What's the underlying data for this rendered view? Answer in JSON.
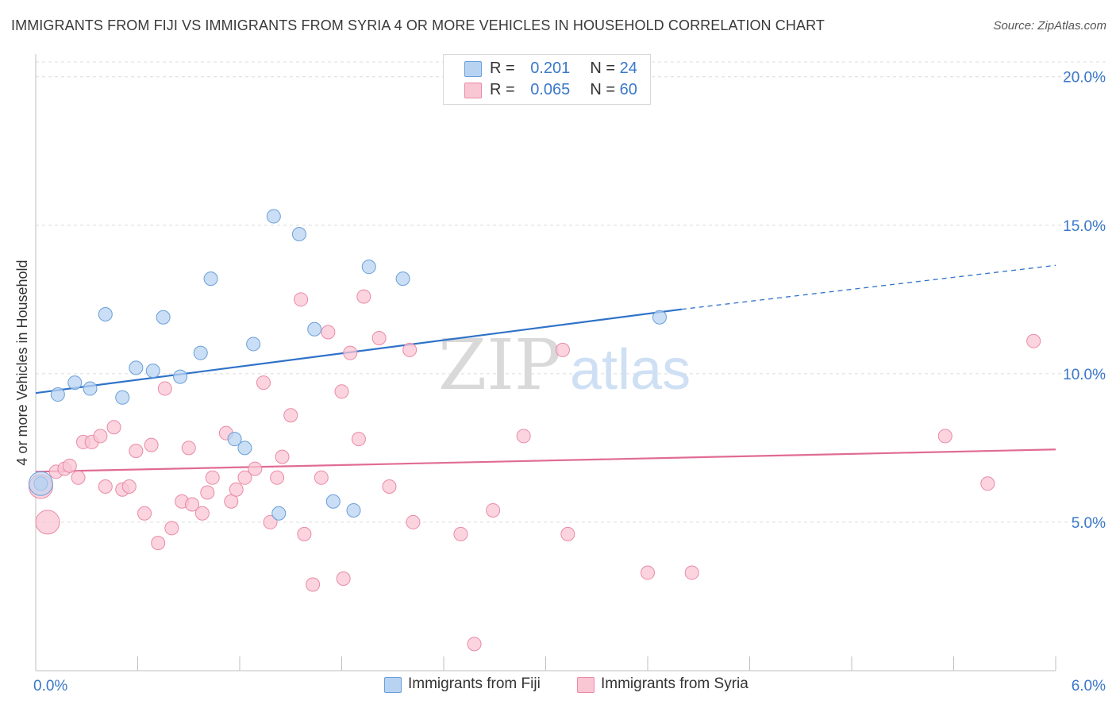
{
  "title": "IMMIGRANTS FROM FIJI VS IMMIGRANTS FROM SYRIA 4 OR MORE VEHICLES IN HOUSEHOLD CORRELATION CHART",
  "source": "Source: ZipAtlas.com",
  "watermark": {
    "zip": "ZIP",
    "atlas": "atlas"
  },
  "legend": {
    "r_label": "R =",
    "n_label": "N =",
    "rows": [
      {
        "r": "0.201",
        "n": "24",
        "color": "#b8d3f2",
        "border": "#6a9fd8"
      },
      {
        "r": "0.065",
        "n": "60",
        "color": "#f9c6d4",
        "border": "#e98aa6"
      }
    ]
  },
  "bottom_legend": [
    {
      "label": "Immigrants from Fiji",
      "color": "#b8d3f2",
      "border": "#6a9fd8"
    },
    {
      "label": "Immigrants from Syria",
      "color": "#f9c6d4",
      "border": "#e98aa6"
    }
  ],
  "chart_data": {
    "type": "scatter",
    "ylabel": "4 or more Vehicles in Household",
    "xlabel": "",
    "xlim": [
      0,
      6
    ],
    "ylim": [
      0,
      20.5
    ],
    "x_tick_labels": [
      {
        "value": 0,
        "label": "0.0%"
      },
      {
        "value": 6,
        "label": "6.0%"
      }
    ],
    "y_tick_labels": [
      {
        "value": 5,
        "label": "5.0%"
      },
      {
        "value": 10,
        "label": "10.0%"
      },
      {
        "value": 15,
        "label": "15.0%"
      },
      {
        "value": 20,
        "label": "20.0%"
      }
    ],
    "grid": true,
    "legend_position": "top-center",
    "series": [
      {
        "name": "Immigrants from Fiji",
        "color": "#6a9fd8",
        "fill": "#b8d3f2",
        "points": [
          [
            0.03,
            6.3
          ],
          [
            0.13,
            9.3
          ],
          [
            0.23,
            9.7
          ],
          [
            0.32,
            9.5
          ],
          [
            0.41,
            12.0
          ],
          [
            0.51,
            9.2
          ],
          [
            0.59,
            10.2
          ],
          [
            0.69,
            10.1
          ],
          [
            0.75,
            11.9
          ],
          [
            0.85,
            9.9
          ],
          [
            0.97,
            10.7
          ],
          [
            1.03,
            13.2
          ],
          [
            1.17,
            7.8
          ],
          [
            1.23,
            7.5
          ],
          [
            1.28,
            11.0
          ],
          [
            1.4,
            15.3
          ],
          [
            1.43,
            5.3
          ],
          [
            1.55,
            14.7
          ],
          [
            1.64,
            11.5
          ],
          [
            1.75,
            5.7
          ],
          [
            1.87,
            5.4
          ],
          [
            1.96,
            13.6
          ],
          [
            2.16,
            13.2
          ],
          [
            3.67,
            11.9
          ]
        ],
        "trend": {
          "x0": 0,
          "y0": 9.35,
          "x1": 3.8,
          "y1": 12.17,
          "dash_to_x": 6,
          "dash_to_y": 13.65
        }
      },
      {
        "name": "Immigrants from Syria",
        "color": "#e98aa6",
        "fill": "#f9c6d4",
        "points": [
          [
            0.03,
            6.2
          ],
          [
            0.07,
            5.0
          ],
          [
            0.12,
            6.7
          ],
          [
            0.17,
            6.8
          ],
          [
            0.2,
            6.9
          ],
          [
            0.25,
            6.5
          ],
          [
            0.28,
            7.7
          ],
          [
            0.33,
            7.7
          ],
          [
            0.38,
            7.9
          ],
          [
            0.41,
            6.2
          ],
          [
            0.46,
            8.2
          ],
          [
            0.51,
            6.1
          ],
          [
            0.55,
            6.2
          ],
          [
            0.59,
            7.4
          ],
          [
            0.64,
            5.3
          ],
          [
            0.68,
            7.6
          ],
          [
            0.72,
            4.3
          ],
          [
            0.76,
            9.5
          ],
          [
            0.8,
            4.8
          ],
          [
            0.86,
            5.7
          ],
          [
            0.9,
            7.5
          ],
          [
            0.92,
            5.6
          ],
          [
            0.98,
            5.3
          ],
          [
            1.01,
            6.0
          ],
          [
            1.04,
            6.5
          ],
          [
            1.12,
            8.0
          ],
          [
            1.15,
            5.7
          ],
          [
            1.18,
            6.1
          ],
          [
            1.23,
            6.5
          ],
          [
            1.29,
            6.8
          ],
          [
            1.34,
            9.7
          ],
          [
            1.38,
            5.0
          ],
          [
            1.42,
            6.5
          ],
          [
            1.45,
            7.2
          ],
          [
            1.5,
            8.6
          ],
          [
            1.56,
            12.5
          ],
          [
            1.58,
            4.6
          ],
          [
            1.63,
            2.9
          ],
          [
            1.68,
            6.5
          ],
          [
            1.72,
            11.4
          ],
          [
            1.8,
            9.4
          ],
          [
            1.81,
            3.1
          ],
          [
            1.85,
            10.7
          ],
          [
            1.9,
            7.8
          ],
          [
            1.93,
            12.6
          ],
          [
            2.02,
            11.2
          ],
          [
            2.08,
            6.2
          ],
          [
            2.2,
            10.8
          ],
          [
            2.22,
            5.0
          ],
          [
            2.5,
            4.6
          ],
          [
            2.58,
            0.9
          ],
          [
            2.69,
            5.4
          ],
          [
            2.87,
            7.9
          ],
          [
            3.1,
            10.8
          ],
          [
            3.13,
            4.6
          ],
          [
            3.6,
            3.3
          ],
          [
            3.86,
            3.3
          ],
          [
            5.35,
            7.9
          ],
          [
            5.6,
            6.3
          ],
          [
            5.87,
            11.1
          ]
        ],
        "trend": {
          "x0": 0,
          "y0": 6.7,
          "x1": 6,
          "y1": 7.45
        }
      }
    ]
  }
}
